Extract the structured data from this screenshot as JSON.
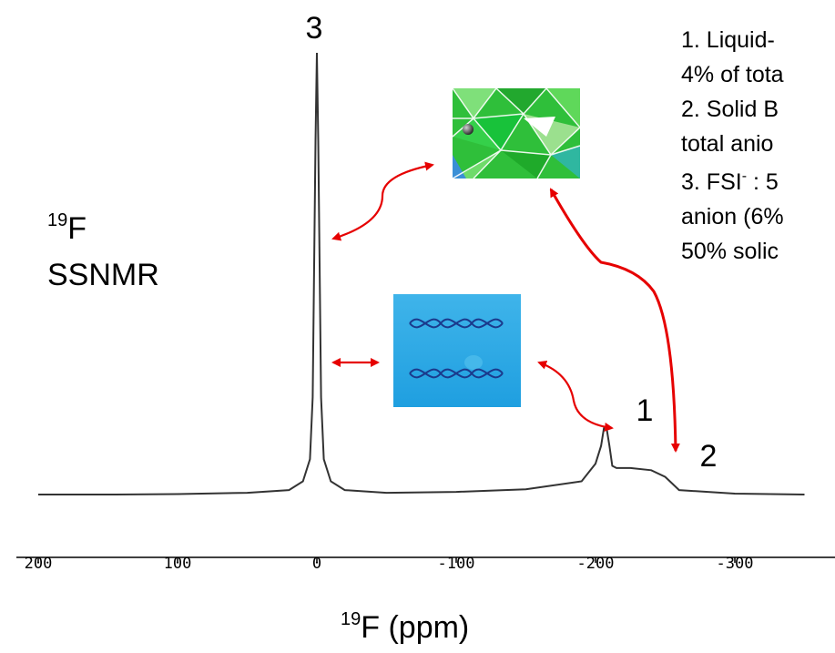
{
  "chart_data": {
    "type": "line",
    "title": "",
    "side_label": {
      "nucleus_sup": "19",
      "nucleus": "F",
      "method": "SSNMR"
    },
    "xlabel": {
      "sup": "19",
      "text": "F (ppm)"
    },
    "xlim": [
      200,
      -400
    ],
    "reversed_x": true,
    "xticks": [
      "200",
      "100",
      "0",
      "-100",
      "-200",
      "-300"
    ],
    "xtick_values": [
      200,
      100,
      0,
      -100,
      -200,
      -300
    ],
    "y_axis_visible": false,
    "grid": false,
    "peaks": [
      {
        "label": "3",
        "ppm": 0
      },
      {
        "label": "1",
        "ppm": -208
      },
      {
        "label": "2",
        "ppm": -243
      }
    ],
    "series": [
      {
        "x": [
          200,
          150,
          100,
          50,
          20,
          10,
          5,
          3,
          1,
          0,
          -1,
          -3,
          -5,
          -10,
          -20,
          -50,
          -100,
          -150,
          -190,
          -200,
          -204,
          -206,
          -208,
          -210,
          -212,
          -215,
          -225,
          -240,
          -250,
          -255,
          -260,
          -300,
          -350
        ],
        "y": [
          0.0,
          0.0,
          0.001,
          0.004,
          0.01,
          0.03,
          0.08,
          0.22,
          0.8,
          1.0,
          0.8,
          0.22,
          0.08,
          0.03,
          0.01,
          0.004,
          0.006,
          0.012,
          0.03,
          0.07,
          0.11,
          0.15,
          0.15,
          0.11,
          0.065,
          0.06,
          0.06,
          0.055,
          0.04,
          0.025,
          0.01,
          0.002,
          0.0
        ],
        "color": "#333333"
      }
    ],
    "annotation_lines": [
      "1. Liquid-",
      "4% of tota",
      "2. Solid B",
      "total anio",
      "3. FSI",
      " : 5",
      "anion (6%",
      "50% solic"
    ],
    "superscript_minus": "-",
    "arrow_color": "#e60000"
  }
}
